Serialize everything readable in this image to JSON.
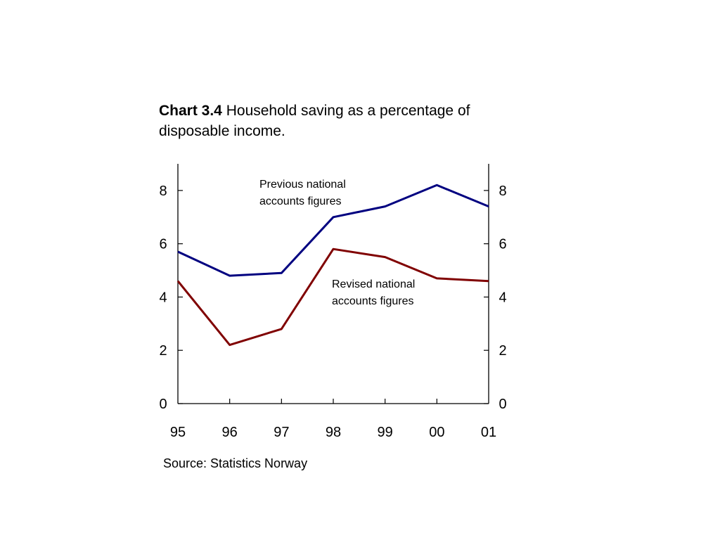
{
  "title": {
    "label": "Chart 3.4",
    "text": "Household saving as a percentage of disposable income."
  },
  "source": "Source: Statistics Norway",
  "chart_data": {
    "type": "line",
    "title": "Chart 3.4 Household saving as a percentage of disposable income.",
    "categories": [
      "95",
      "96",
      "97",
      "98",
      "99",
      "00",
      "01"
    ],
    "ylim": [
      0,
      9
    ],
    "yticks": [
      0,
      2,
      4,
      6,
      8
    ],
    "y2ticks": [
      0,
      2,
      4,
      6,
      8
    ],
    "grid": false,
    "series": [
      {
        "name": "Previous national accounts figures",
        "color": "#000080",
        "values": [
          5.7,
          4.8,
          4.9,
          7.0,
          7.4,
          8.2,
          7.4
        ]
      },
      {
        "name": "Revised national accounts figures",
        "color": "#800000",
        "values": [
          4.6,
          2.2,
          2.8,
          5.8,
          5.5,
          4.7,
          4.6
        ]
      }
    ],
    "annotations": [
      {
        "series": 0,
        "lines": [
          "Previous national",
          "accounts figures"
        ]
      },
      {
        "series": 1,
        "lines": [
          "Revised national",
          "accounts figures"
        ]
      }
    ]
  }
}
